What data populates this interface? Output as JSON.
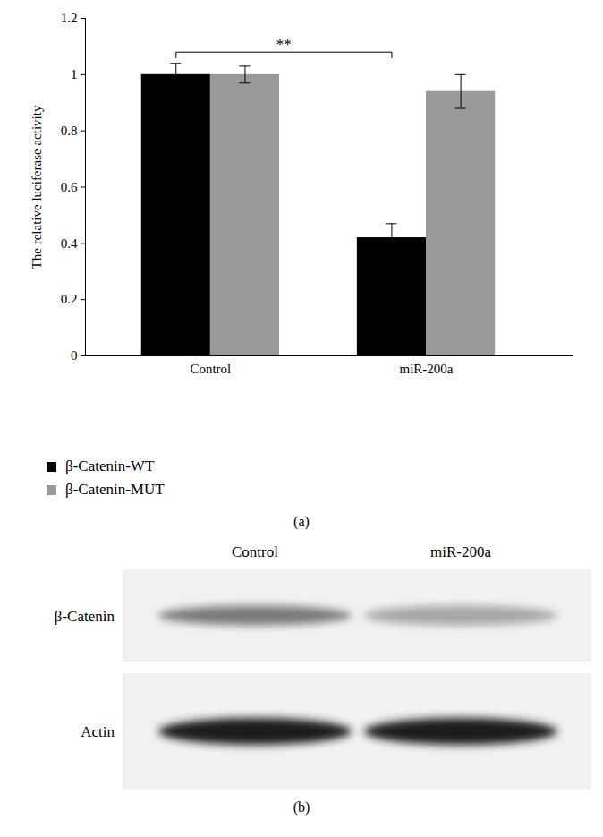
{
  "chart_data": {
    "type": "bar",
    "caption": "(a)",
    "y_label": "The relative luciferase activity",
    "categories": [
      "Control",
      "miR-200a"
    ],
    "series": [
      {
        "name": "β-Catenin-WT",
        "color": "#000000",
        "values": [
          1.0,
          0.42
        ],
        "errors": [
          0.04,
          0.05
        ]
      },
      {
        "name": "β-Catenin-MUT",
        "color": "#999999",
        "values": [
          1.0,
          0.94
        ],
        "errors": [
          0.03,
          0.06
        ]
      }
    ],
    "ylim": [
      0,
      1.2
    ],
    "yticks": [
      0,
      0.2,
      0.4,
      0.6,
      0.8,
      1,
      1.2
    ],
    "grid": false,
    "legend": "bottom-left",
    "annotations": [
      {
        "text": "**",
        "series": "β-Catenin-WT",
        "between": [
          "Control",
          "miR-200a"
        ]
      }
    ]
  },
  "blot": {
    "caption": "(b)",
    "lanes": [
      "Control",
      "miR-200a"
    ],
    "rows": [
      "β-Catenin",
      "Actin"
    ]
  }
}
